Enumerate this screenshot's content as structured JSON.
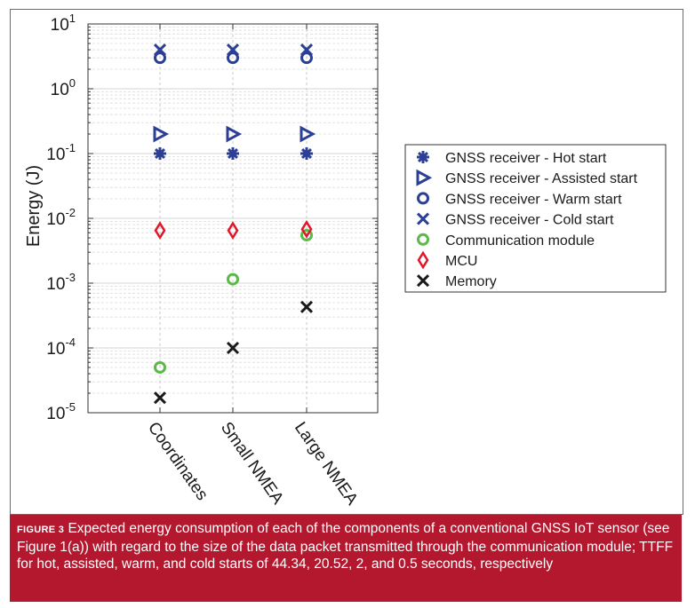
{
  "chart_data": {
    "type": "scatter",
    "categories": [
      "Coordinates",
      "Small NMEA",
      "Large NMEA"
    ],
    "ylabel": "Energy (J)",
    "xlabel": "",
    "yscale": "log",
    "ylim": [
      1e-05,
      10
    ],
    "yticks": [
      {
        "base": "10",
        "exp": "-5"
      },
      {
        "base": "10",
        "exp": "-4"
      },
      {
        "base": "10",
        "exp": "-3"
      },
      {
        "base": "10",
        "exp": "-2"
      },
      {
        "base": "10",
        "exp": "-1"
      },
      {
        "base": "10",
        "exp": "0"
      },
      {
        "base": "10",
        "exp": "1"
      }
    ],
    "grid": true,
    "legend_position": "right",
    "series": [
      {
        "name": "GNSS receiver - Hot start",
        "marker": "asterisk",
        "color": "#2b3f95",
        "values": [
          0.1,
          0.1,
          0.1
        ]
      },
      {
        "name": "GNSS receiver - Assisted start",
        "marker": "triangle-right",
        "color": "#2b3f95",
        "values": [
          0.2,
          0.2,
          0.2
        ]
      },
      {
        "name": "GNSS receiver - Warm start",
        "marker": "circle",
        "color": "#2b3f95",
        "values": [
          3.0,
          3.0,
          3.0
        ]
      },
      {
        "name": "GNSS receiver - Cold start",
        "marker": "x",
        "color": "#2b3f95",
        "values": [
          4.0,
          4.0,
          4.0
        ]
      },
      {
        "name": "Communication module",
        "marker": "circle",
        "color": "#5bb947",
        "values": [
          5e-05,
          0.00115,
          0.0055
        ]
      },
      {
        "name": "MCU",
        "marker": "diamond",
        "color": "#e0162b",
        "values": [
          0.0065,
          0.0065,
          0.0068
        ]
      },
      {
        "name": "Memory",
        "marker": "x",
        "color": "#1a1a1a",
        "values": [
          1.7e-05,
          0.0001,
          0.00043
        ]
      }
    ]
  },
  "caption": {
    "figure_label": "FIGURE 3",
    "text": "Expected energy consumption of each of the components of a conventional GNSS IoT sensor (see Figure 1(a)) with regard to the size of the data packet transmitted through the communication module; TTFF for hot, assisted, warm, and cold starts of 44.34, 20.52, 2, and 0.5 seconds, respectively"
  }
}
